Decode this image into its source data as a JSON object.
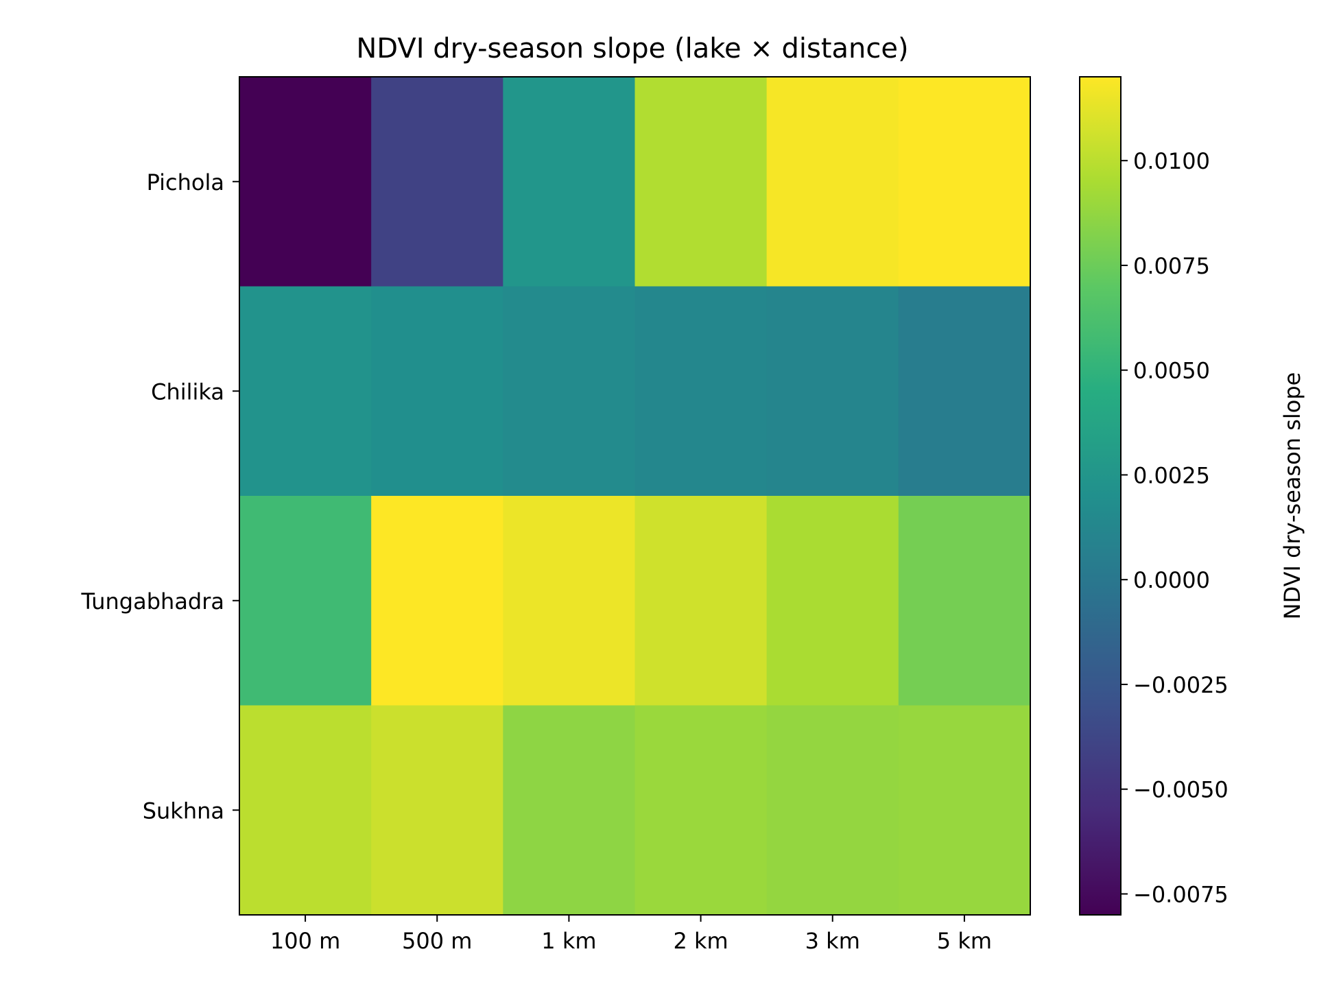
{
  "chart_data": {
    "type": "heatmap",
    "title": "NDVI dry-season slope (lake × distance)",
    "x_categories": [
      "100 m",
      "500 m",
      "1 km",
      "2 km",
      "3 km",
      "5 km"
    ],
    "y_categories": [
      "Pichola",
      "Chilika",
      "Tungabhadra",
      "Sukhna"
    ],
    "values": [
      [
        -0.008,
        -0.004,
        0.0025,
        0.0097,
        0.0118,
        0.012
      ],
      [
        0.0023,
        0.0019,
        0.0016,
        0.0013,
        0.0011,
        0.0005
      ],
      [
        0.0057,
        0.012,
        0.0115,
        0.0106,
        0.0095,
        0.0078
      ],
      [
        0.01,
        0.0105,
        0.0086,
        0.009,
        0.0088,
        0.0089
      ]
    ],
    "colorbar": {
      "label": "NDVI dry-season slope",
      "range": [
        -0.008,
        0.012
      ],
      "ticks": [
        -0.0075,
        -0.005,
        -0.0025,
        0.0,
        0.0025,
        0.005,
        0.0075,
        0.01
      ],
      "tick_labels": [
        "−0.0075",
        "−0.0050",
        "−0.0025",
        "0.0000",
        "0.0025",
        "0.0050",
        "0.0075",
        "0.0100"
      ],
      "colormap": "viridis"
    }
  }
}
